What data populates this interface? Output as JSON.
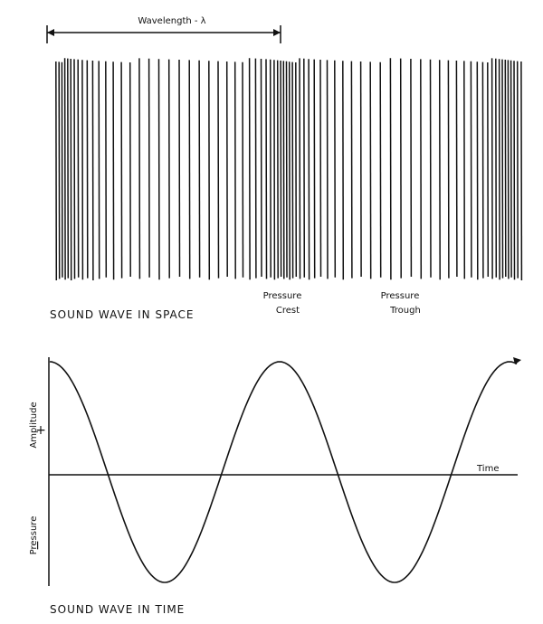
{
  "space": {
    "wavelength_label": "Wavelength - λ",
    "caption": "SOUND WAVE IN SPACE",
    "crest_label": [
      "Pressure",
      "Crest"
    ],
    "trough_label": [
      "Pressure",
      "Trough"
    ]
  },
  "time": {
    "amplitude_label": "Amplitude",
    "plus": "+",
    "pressure_label": "Pressure",
    "minus": "−",
    "time_label": "Time",
    "caption": "SOUND WAVE IN TIME"
  }
}
